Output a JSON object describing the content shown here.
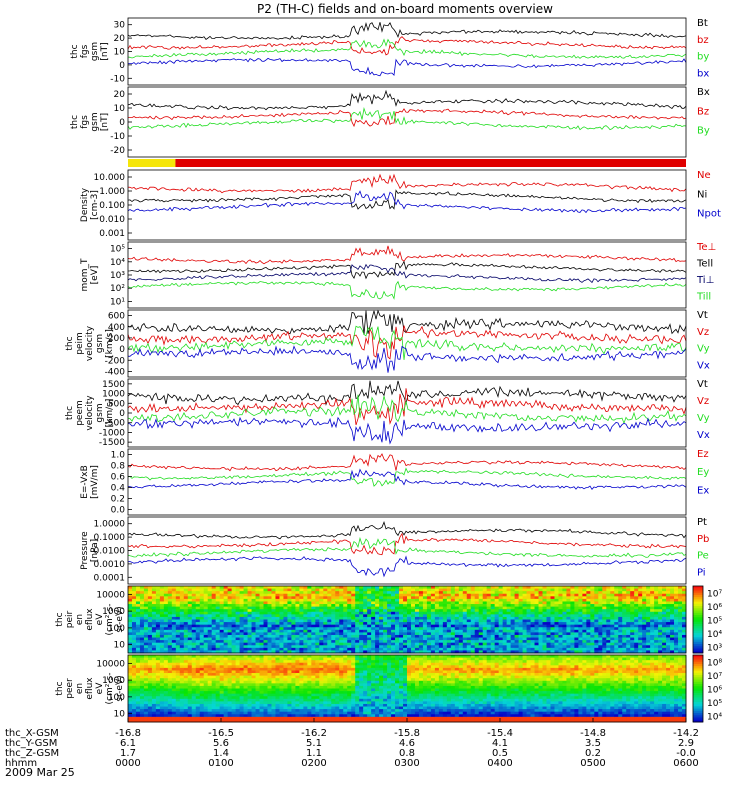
{
  "title": "P2 (TH-C) fields and on-board moments overview",
  "date_label": "2009 Mar 25",
  "colors": {
    "black": "#000000",
    "red": "#e00000",
    "green": "#22dd22",
    "blue": "#0000cc",
    "yellow": "#f5e60a",
    "navy": "#000066"
  },
  "chart_data": [
    {
      "type": "line",
      "id": "fgs_mag",
      "ylabel": [
        "thc",
        "fgs",
        "gsm",
        "[nT]"
      ],
      "ylim": [
        -20,
        30
      ],
      "ticks": [
        -10,
        0,
        10,
        20,
        30
      ],
      "series": [
        {
          "name": "Bt",
          "color": "black"
        },
        {
          "name": "bz",
          "color": "red"
        },
        {
          "name": "by",
          "color": "green"
        },
        {
          "name": "bx",
          "color": "blue"
        }
      ]
    },
    {
      "type": "line",
      "id": "fgs_comp",
      "ylabel": [
        "thc",
        "fgs",
        "gsm",
        "[nT]"
      ],
      "ylim": [
        -25,
        25
      ],
      "ticks": [
        -20,
        -10,
        0,
        10,
        20
      ],
      "series": [
        {
          "name": "Bx",
          "color": "black"
        },
        {
          "name": "Bz",
          "color": "red"
        },
        {
          "name": "By",
          "color": "green"
        }
      ]
    },
    {
      "type": "bar",
      "id": "mode_bar",
      "segments": [
        {
          "from": 0,
          "to": 0.085,
          "color": "yellow"
        },
        {
          "from": 0.085,
          "to": 1.0,
          "color": "red"
        }
      ]
    },
    {
      "type": "line",
      "id": "density",
      "ylabel": [
        "Density",
        "[cm-3]"
      ],
      "log": true,
      "ylim": [
        0.001,
        10
      ],
      "ticks": [
        "0.001",
        "0.010",
        "0.100",
        "1.000",
        "10.000"
      ],
      "series": [
        {
          "name": "Ne",
          "color": "red"
        },
        {
          "name": "Ni",
          "color": "black"
        },
        {
          "name": "Npot",
          "color": "blue"
        }
      ]
    },
    {
      "type": "line",
      "id": "temperature",
      "ylabel": [
        "mom_T",
        "[eV]"
      ],
      "log": true,
      "ylim": [
        10,
        100000
      ],
      "ticks": [
        "10¹",
        "10²",
        "10³",
        "10⁴",
        "10⁵"
      ],
      "series": [
        {
          "name": "Te⊥",
          "color": "red"
        },
        {
          "name": "Tell",
          "color": "black"
        },
        {
          "name": "Ti⊥",
          "color": "navy"
        },
        {
          "name": "Till",
          "color": "green"
        }
      ]
    },
    {
      "type": "line",
      "id": "peim_vel",
      "ylabel": [
        "thc",
        "peim",
        "velocity",
        "gsm",
        "[km/s]"
      ],
      "ylim": [
        -400,
        700
      ],
      "ticks": [
        -400,
        -200,
        0,
        200,
        400,
        600
      ],
      "series": [
        {
          "name": "Vt",
          "color": "black"
        },
        {
          "name": "Vz",
          "color": "red"
        },
        {
          "name": "Vy",
          "color": "green"
        },
        {
          "name": "Vx",
          "color": "blue"
        }
      ]
    },
    {
      "type": "line",
      "id": "peem_vel",
      "ylabel": [
        "thc",
        "peem",
        "velocity",
        "gsm",
        "[km/s]"
      ],
      "ylim": [
        -1600,
        1600
      ],
      "ticks": [
        -1500,
        -1000,
        -500,
        0,
        500,
        1000,
        1500
      ],
      "series": [
        {
          "name": "Vt",
          "color": "black"
        },
        {
          "name": "Vz",
          "color": "red"
        },
        {
          "name": "Vy",
          "color": "green"
        },
        {
          "name": "Vx",
          "color": "blue"
        }
      ]
    },
    {
      "type": "line",
      "id": "exb",
      "ylabel": [
        "E=-VxB",
        "[mV/m]"
      ],
      "ylim": [
        0,
        1
      ],
      "ticks": [
        "0.0",
        "0.2",
        "0.4",
        "0.6",
        "0.8",
        "1.0"
      ],
      "series": [
        {
          "name": "Ez",
          "color": "red"
        },
        {
          "name": "Ey",
          "color": "green"
        },
        {
          "name": "Ex",
          "color": "blue"
        }
      ]
    },
    {
      "type": "line",
      "id": "pressure",
      "ylabel": [
        "Pressure",
        "[nPa]"
      ],
      "log": true,
      "ylim": [
        0.0001,
        1
      ],
      "ticks": [
        "0.0001",
        "0.0010",
        "0.0100",
        "0.1000",
        "1.0000"
      ],
      "series": [
        {
          "name": "Pt",
          "color": "black"
        },
        {
          "name": "Pb",
          "color": "red"
        },
        {
          "name": "Pe",
          "color": "green"
        },
        {
          "name": "Pi",
          "color": "blue"
        }
      ]
    },
    {
      "type": "heatmap",
      "id": "peir_eflux",
      "ylabel": [
        "thc",
        "peir",
        "en",
        "eflux",
        "eV",
        "(cm²-s-",
        "sr-eV)"
      ],
      "ticks": [
        "10",
        "100",
        "1000",
        "10000"
      ],
      "colorbar": [
        "10³",
        "10⁴",
        "10⁵",
        "10⁶",
        "10⁷"
      ]
    },
    {
      "type": "heatmap",
      "id": "peer_eflux",
      "ylabel": [
        "thc",
        "peer",
        "en",
        "eflux",
        "eV",
        "(cm²-s-",
        "sr-eV)"
      ],
      "ticks": [
        "10",
        "100",
        "1000",
        "10000"
      ],
      "colorbar": [
        "10⁴",
        "10⁵",
        "10⁶",
        "10⁷",
        "10⁸"
      ]
    }
  ],
  "xaxis": {
    "rows": [
      {
        "label": "thc_X-GSM",
        "values": [
          "-16.8",
          "-16.5",
          "-16.2",
          "-15.8",
          "-15.4",
          "-14.8",
          "-14.2"
        ]
      },
      {
        "label": "thc_Y-GSM",
        "values": [
          "6.1",
          "5.6",
          "5.1",
          "4.6",
          "4.1",
          "3.5",
          "2.9"
        ]
      },
      {
        "label": "thc_Z-GSM",
        "values": [
          "1.7",
          "1.4",
          "1.1",
          "0.8",
          "0.5",
          "0.2",
          "-0.0"
        ]
      },
      {
        "label": "hhmm",
        "values": [
          "0000",
          "0100",
          "0200",
          "0300",
          "0400",
          "0500",
          "0600"
        ]
      }
    ]
  }
}
